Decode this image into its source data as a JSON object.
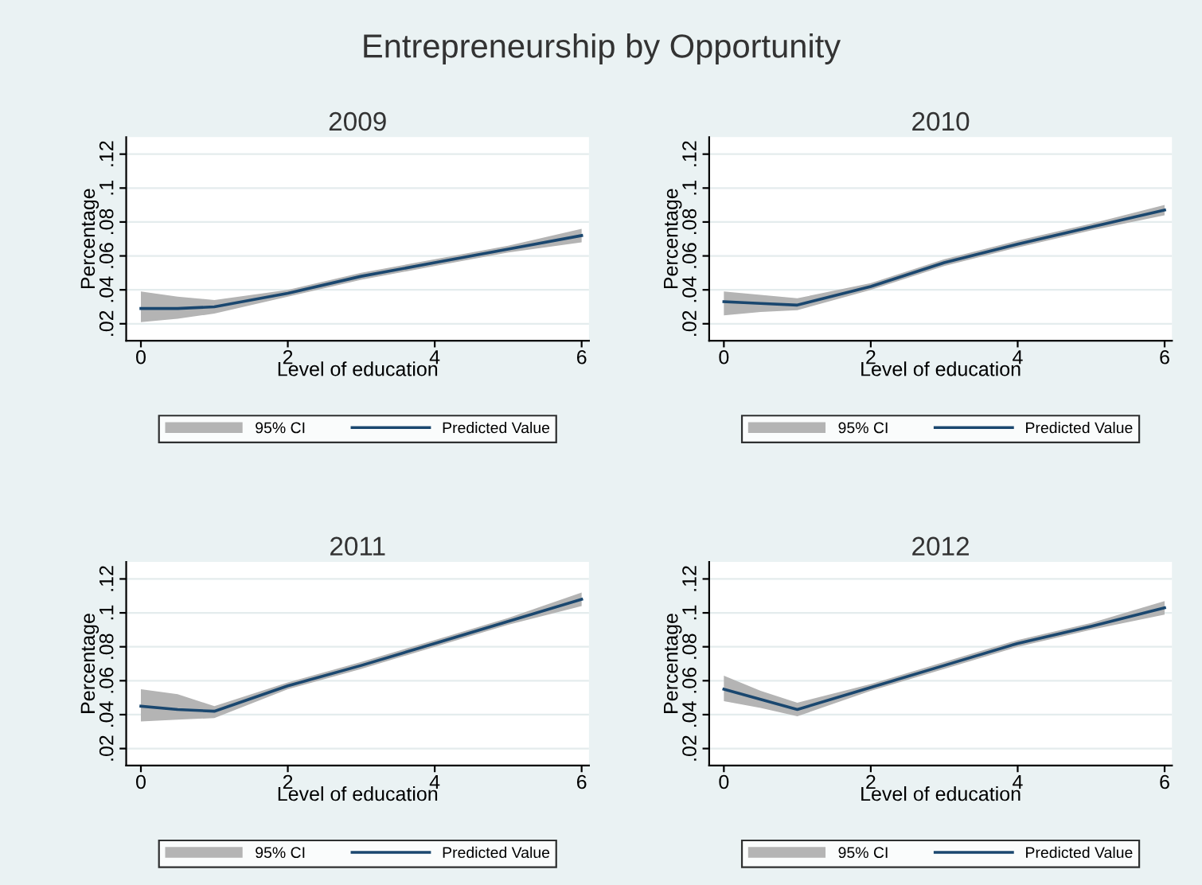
{
  "chart_data": [
    {
      "type": "line",
      "title": "Entrepreneurship by Opportunity",
      "subtitle": "2009",
      "annotations": [
        "95% CI"
      ],
      "xlabel": "Level of education",
      "ylabel": "Percentage",
      "x": [
        0,
        0.5,
        1,
        2,
        3,
        4,
        5,
        6
      ],
      "xlim": [
        -0.2,
        6.1
      ],
      "xticks": [
        0,
        2,
        4,
        6
      ],
      "ylim": [
        0.01,
        0.13
      ],
      "yticks": [
        {
          "value": 0.02,
          "label": ".02"
        },
        {
          "value": 0.04,
          "label": ".04"
        },
        {
          "value": 0.06,
          "label": ".06"
        },
        {
          "value": 0.08,
          "label": ".08"
        },
        {
          "value": 0.1,
          "label": ".1"
        },
        {
          "value": 0.12,
          "label": ".12"
        }
      ],
      "grid": "y",
      "legend": "bottom",
      "series": [
        {
          "name": "Predicted Value",
          "color": "#1a476f",
          "values": [
            0.029,
            0.029,
            0.03,
            0.038,
            0.048,
            0.056,
            0.064,
            0.072
          ],
          "lower": [
            0.021,
            0.023,
            0.026,
            0.036,
            0.046,
            0.054,
            0.062,
            0.068
          ],
          "upper": [
            0.039,
            0.036,
            0.034,
            0.04,
            0.05,
            0.058,
            0.066,
            0.076
          ]
        }
      ]
    },
    {
      "type": "line",
      "subtitle": "2010",
      "annotations": [
        "95% CI"
      ],
      "xlabel": "Level of education",
      "ylabel": "Percentage",
      "x": [
        0,
        0.5,
        1,
        2,
        3,
        4,
        5,
        6
      ],
      "xlim": [
        -0.2,
        6.1
      ],
      "xticks": [
        0,
        2,
        4,
        6
      ],
      "ylim": [
        0.01,
        0.13
      ],
      "yticks": [
        {
          "value": 0.02,
          "label": ".02"
        },
        {
          "value": 0.04,
          "label": ".04"
        },
        {
          "value": 0.06,
          "label": ".06"
        },
        {
          "value": 0.08,
          "label": ".08"
        },
        {
          "value": 0.1,
          "label": ".1"
        },
        {
          "value": 0.12,
          "label": ".12"
        }
      ],
      "grid": "y",
      "legend": "bottom",
      "series": [
        {
          "name": "Predicted Value",
          "color": "#1a476f",
          "values": [
            0.033,
            0.032,
            0.031,
            0.042,
            0.056,
            0.067,
            0.077,
            0.087
          ],
          "lower": [
            0.025,
            0.027,
            0.028,
            0.04,
            0.054,
            0.065,
            0.075,
            0.084
          ],
          "upper": [
            0.039,
            0.037,
            0.035,
            0.044,
            0.058,
            0.069,
            0.079,
            0.09
          ]
        }
      ]
    },
    {
      "type": "line",
      "subtitle": "2011",
      "annotations": [
        "95% CI"
      ],
      "xlabel": "Level of education",
      "ylabel": "Percentage",
      "x": [
        0,
        0.5,
        1,
        2,
        3,
        4,
        5,
        6
      ],
      "xlim": [
        -0.2,
        6.1
      ],
      "xticks": [
        0,
        2,
        4,
        6
      ],
      "ylim": [
        0.01,
        0.13
      ],
      "yticks": [
        {
          "value": 0.02,
          "label": ".02"
        },
        {
          "value": 0.04,
          "label": ".04"
        },
        {
          "value": 0.06,
          "label": ".06"
        },
        {
          "value": 0.08,
          "label": ".08"
        },
        {
          "value": 0.1,
          "label": ".1"
        },
        {
          "value": 0.12,
          "label": ".12"
        }
      ],
      "grid": "y",
      "legend": "bottom",
      "series": [
        {
          "name": "Predicted Value",
          "color": "#1a476f",
          "values": [
            0.045,
            0.043,
            0.042,
            0.057,
            0.069,
            0.082,
            0.095,
            0.108
          ],
          "lower": [
            0.036,
            0.037,
            0.038,
            0.055,
            0.067,
            0.08,
            0.093,
            0.104
          ],
          "upper": [
            0.055,
            0.052,
            0.045,
            0.059,
            0.071,
            0.084,
            0.097,
            0.112
          ]
        }
      ]
    },
    {
      "type": "line",
      "subtitle": "2012",
      "annotations": [
        "95% CI"
      ],
      "xlabel": "Level of education",
      "ylabel": "Percentage",
      "x": [
        0,
        0.5,
        1,
        2,
        3,
        4,
        5,
        6
      ],
      "xlim": [
        -0.2,
        6.1
      ],
      "xticks": [
        0,
        2,
        4,
        6
      ],
      "ylim": [
        0.01,
        0.13
      ],
      "yticks": [
        {
          "value": 0.02,
          "label": ".02"
        },
        {
          "value": 0.04,
          "label": ".04"
        },
        {
          "value": 0.06,
          "label": ".06"
        },
        {
          "value": 0.08,
          "label": ".08"
        },
        {
          "value": 0.1,
          "label": ".1"
        },
        {
          "value": 0.12,
          "label": ".12"
        }
      ],
      "grid": "y",
      "legend": "bottom",
      "series": [
        {
          "name": "Predicted Value",
          "color": "#1a476f",
          "values": [
            0.055,
            0.049,
            0.043,
            0.056,
            0.069,
            0.082,
            0.092,
            0.103
          ],
          "lower": [
            0.048,
            0.044,
            0.039,
            0.054,
            0.067,
            0.08,
            0.09,
            0.099
          ],
          "upper": [
            0.063,
            0.054,
            0.047,
            0.058,
            0.071,
            0.084,
            0.094,
            0.107
          ]
        }
      ]
    }
  ]
}
